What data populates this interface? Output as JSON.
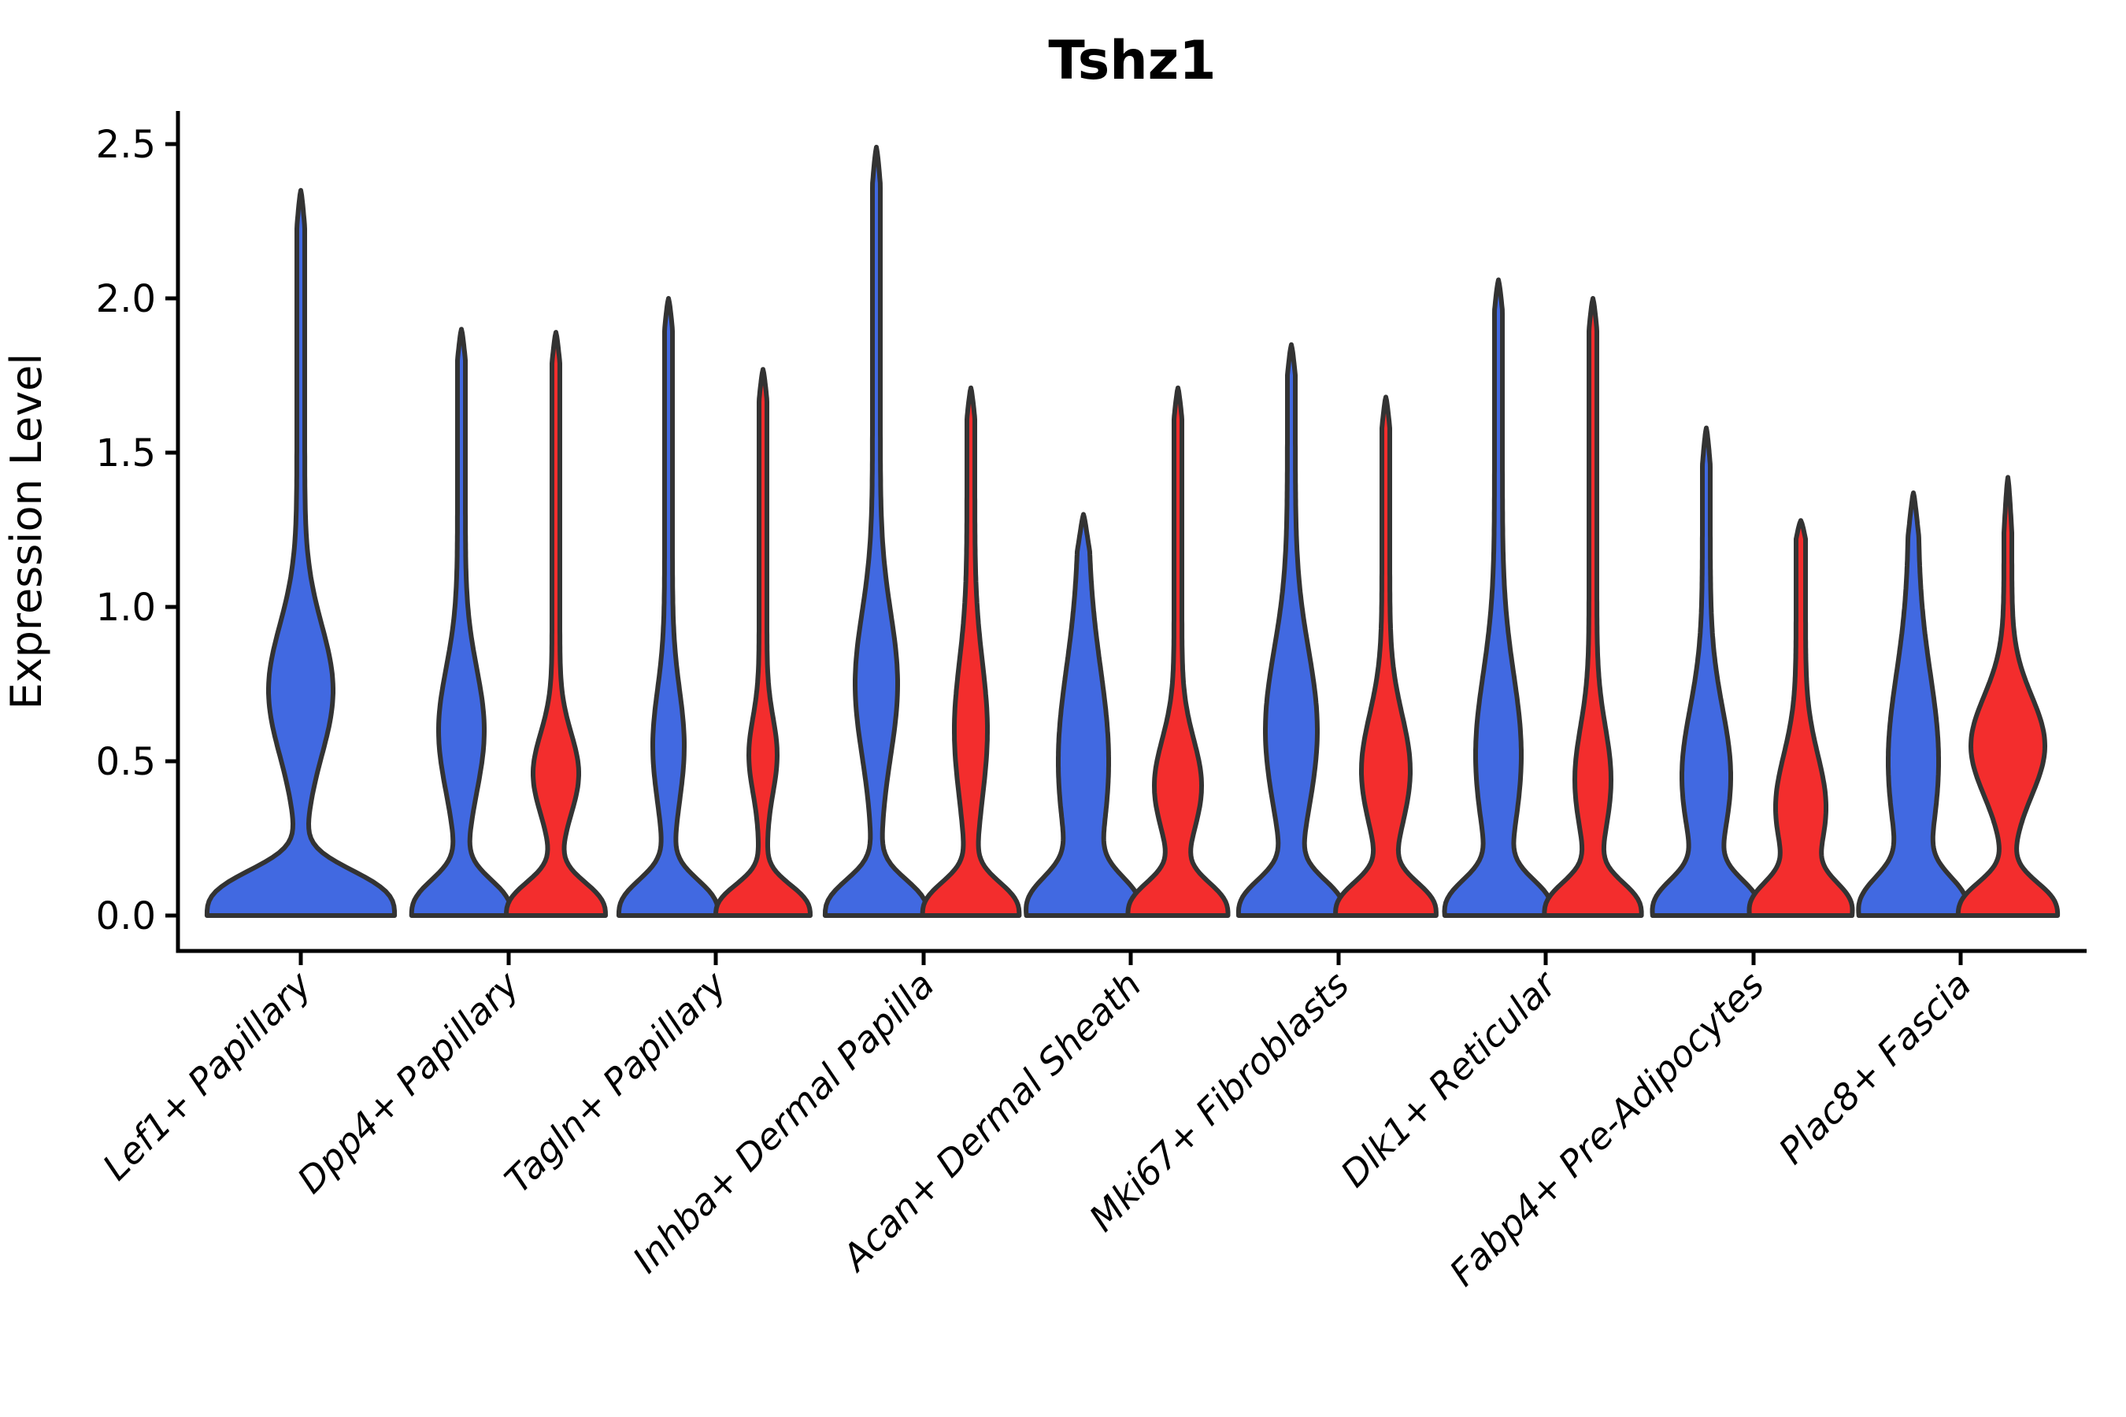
{
  "title": "Tshz1",
  "axes": {
    "ylabel": "Expression Level",
    "xlabel": "",
    "ytick_labels": [
      "0.0",
      "0.5",
      "1.0",
      "1.5",
      "2.0",
      "2.5"
    ]
  },
  "chart_data": {
    "type": "violin",
    "title": "Tshz1",
    "xlabel": "",
    "ylabel": "Expression Level",
    "ylim": [
      0,
      2.6
    ],
    "yticks": [
      0.0,
      0.5,
      1.0,
      1.5,
      2.0,
      2.5
    ],
    "grid": false,
    "legend": "none",
    "colors": {
      "blue": "#4169E1",
      "red": "#F32D2D",
      "outline": "#333333"
    },
    "categories": [
      "Lef1+ Papillary",
      "Dpp4+ Papillary",
      "Tagln+ Papillary",
      "Inhba+ Dermal Papilla",
      "Acan+ Dermal Sheath",
      "Mki67+ Fibroblasts",
      "Dlk1+ Reticular",
      "Fabp4+ Pre-Adipocytes",
      "Plac8+ Fascia"
    ],
    "series_note": "Each category shows a blue (left) and red (right) condition violin; the first category has a single wide blue violin. Densities peak at expression 0 with a mid-level bulge and a thin spike to the maximum.",
    "violins": [
      {
        "category": "Lef1+ Papillary",
        "group_index": 0,
        "side": "single",
        "color": "blue",
        "max_expression": 2.35,
        "shape": {
          "base_w": 114,
          "base_sigma": 0.17,
          "base_p": 2.9,
          "knot_c": 0.73,
          "knot_w": 36,
          "knot_sigma": 0.21,
          "stem_w": 5,
          "tip": 0.12
        }
      },
      {
        "category": "Dpp4+ Papillary",
        "group_index": 1,
        "side": "left",
        "color": "blue",
        "max_expression": 1.9,
        "shape": {
          "base_w": 58,
          "base_sigma": 0.14,
          "base_p": 2.6,
          "knot_c": 0.6,
          "knot_w": 24,
          "knot_sigma": 0.2,
          "stem_w": 5,
          "tip": 0.1
        }
      },
      {
        "category": "Dpp4+ Papillary",
        "group_index": 1,
        "side": "right",
        "color": "red",
        "max_expression": 1.89,
        "shape": {
          "base_w": 58,
          "base_sigma": 0.13,
          "base_p": 2.6,
          "knot_c": 0.46,
          "knot_w": 24,
          "knot_sigma": 0.13,
          "stem_w": 5,
          "tip": 0.1
        }
      },
      {
        "category": "Tagln+ Papillary",
        "group_index": 2,
        "side": "left",
        "color": "blue",
        "max_expression": 2.0,
        "shape": {
          "base_w": 58,
          "base_sigma": 0.14,
          "base_p": 2.6,
          "knot_c": 0.55,
          "knot_w": 15,
          "knot_sigma": 0.18,
          "stem_w": 5,
          "tip": 0.1
        }
      },
      {
        "category": "Tagln+ Papillary",
        "group_index": 2,
        "side": "right",
        "color": "red",
        "max_expression": 1.77,
        "shape": {
          "base_w": 55,
          "base_sigma": 0.12,
          "base_p": 2.6,
          "knot_c": 0.52,
          "knot_w": 13,
          "knot_sigma": 0.12,
          "stem_w": 5,
          "tip": 0.1
        }
      },
      {
        "category": "Inhba+ Dermal Papilla",
        "group_index": 3,
        "side": "left",
        "color": "blue",
        "max_expression": 2.49,
        "shape": {
          "base_w": 60,
          "base_sigma": 0.14,
          "base_p": 2.6,
          "knot_c": 0.75,
          "knot_w": 22,
          "knot_sigma": 0.23,
          "stem_w": 5,
          "tip": 0.12
        }
      },
      {
        "category": "Inhba+ Dermal Papilla",
        "group_index": 3,
        "side": "right",
        "color": "red",
        "max_expression": 1.71,
        "shape": {
          "base_w": 56,
          "base_sigma": 0.13,
          "base_p": 2.6,
          "knot_c": 0.6,
          "knot_w": 16,
          "knot_sigma": 0.22,
          "stem_w": 5,
          "tip": 0.1
        }
      },
      {
        "category": "Acan+ Dermal Sheath",
        "group_index": 4,
        "side": "left",
        "color": "blue",
        "max_expression": 1.3,
        "shape": {
          "base_w": 60,
          "base_sigma": 0.15,
          "base_p": 2.6,
          "knot_c": 0.5,
          "knot_w": 26,
          "knot_sigma": 0.3,
          "stem_w": 6,
          "tip": 0.12
        }
      },
      {
        "category": "Acan+ Dermal Sheath",
        "group_index": 4,
        "side": "right",
        "color": "red",
        "max_expression": 1.71,
        "shape": {
          "base_w": 58,
          "base_sigma": 0.13,
          "base_p": 2.6,
          "knot_c": 0.42,
          "knot_w": 25,
          "knot_sigma": 0.15,
          "stem_w": 5,
          "tip": 0.1
        }
      },
      {
        "category": "Mki67+ Fibroblasts",
        "group_index": 5,
        "side": "left",
        "color": "blue",
        "max_expression": 1.85,
        "shape": {
          "base_w": 60,
          "base_sigma": 0.14,
          "base_p": 2.6,
          "knot_c": 0.6,
          "knot_w": 28,
          "knot_sigma": 0.26,
          "stem_w": 5,
          "tip": 0.1
        }
      },
      {
        "category": "Mki67+ Fibroblasts",
        "group_index": 5,
        "side": "right",
        "color": "red",
        "max_expression": 1.68,
        "shape": {
          "base_w": 58,
          "base_sigma": 0.13,
          "base_p": 2.6,
          "knot_c": 0.47,
          "knot_w": 26,
          "knot_sigma": 0.18,
          "stem_w": 5,
          "tip": 0.1
        }
      },
      {
        "category": "Dlk1+ Reticular",
        "group_index": 6,
        "side": "left",
        "color": "blue",
        "max_expression": 2.06,
        "shape": {
          "base_w": 60,
          "base_sigma": 0.14,
          "base_p": 2.6,
          "knot_c": 0.52,
          "knot_w": 24,
          "knot_sigma": 0.26,
          "stem_w": 5,
          "tip": 0.1
        }
      },
      {
        "category": "Dlk1+ Reticular",
        "group_index": 6,
        "side": "right",
        "color": "red",
        "max_expression": 2.0,
        "shape": {
          "base_w": 56,
          "base_sigma": 0.13,
          "base_p": 2.6,
          "knot_c": 0.44,
          "knot_w": 18,
          "knot_sigma": 0.17,
          "stem_w": 5,
          "tip": 0.1
        }
      },
      {
        "category": "Fabp4+ Pre-Adipocytes",
        "group_index": 7,
        "side": "left",
        "color": "blue",
        "max_expression": 1.58,
        "shape": {
          "base_w": 60,
          "base_sigma": 0.14,
          "base_p": 2.6,
          "knot_c": 0.45,
          "knot_w": 26,
          "knot_sigma": 0.22,
          "stem_w": 5,
          "tip": 0.12
        }
      },
      {
        "category": "Fabp4+ Pre-Adipocytes",
        "group_index": 7,
        "side": "right",
        "color": "red",
        "max_expression": 1.28,
        "shape": {
          "base_w": 56,
          "base_sigma": 0.13,
          "base_p": 2.6,
          "knot_c": 0.35,
          "knot_w": 26,
          "knot_sigma": 0.17,
          "stem_w": 6,
          "tip": 0.06
        }
      },
      {
        "category": "Plac8+ Fascia",
        "group_index": 8,
        "side": "left",
        "color": "blue",
        "max_expression": 1.37,
        "shape": {
          "base_w": 58,
          "base_sigma": 0.15,
          "base_p": 2.6,
          "knot_c": 0.5,
          "knot_w": 26,
          "knot_sigma": 0.28,
          "stem_w": 6,
          "tip": 0.14
        }
      },
      {
        "category": "Plac8+ Fascia",
        "group_index": 8,
        "side": "right",
        "color": "red",
        "max_expression": 1.42,
        "shape": {
          "base_w": 58,
          "base_sigma": 0.13,
          "base_p": 2.6,
          "knot_c": 0.55,
          "knot_w": 42,
          "knot_sigma": 0.16,
          "stem_w": 5,
          "tip": 0.18
        }
      }
    ]
  }
}
